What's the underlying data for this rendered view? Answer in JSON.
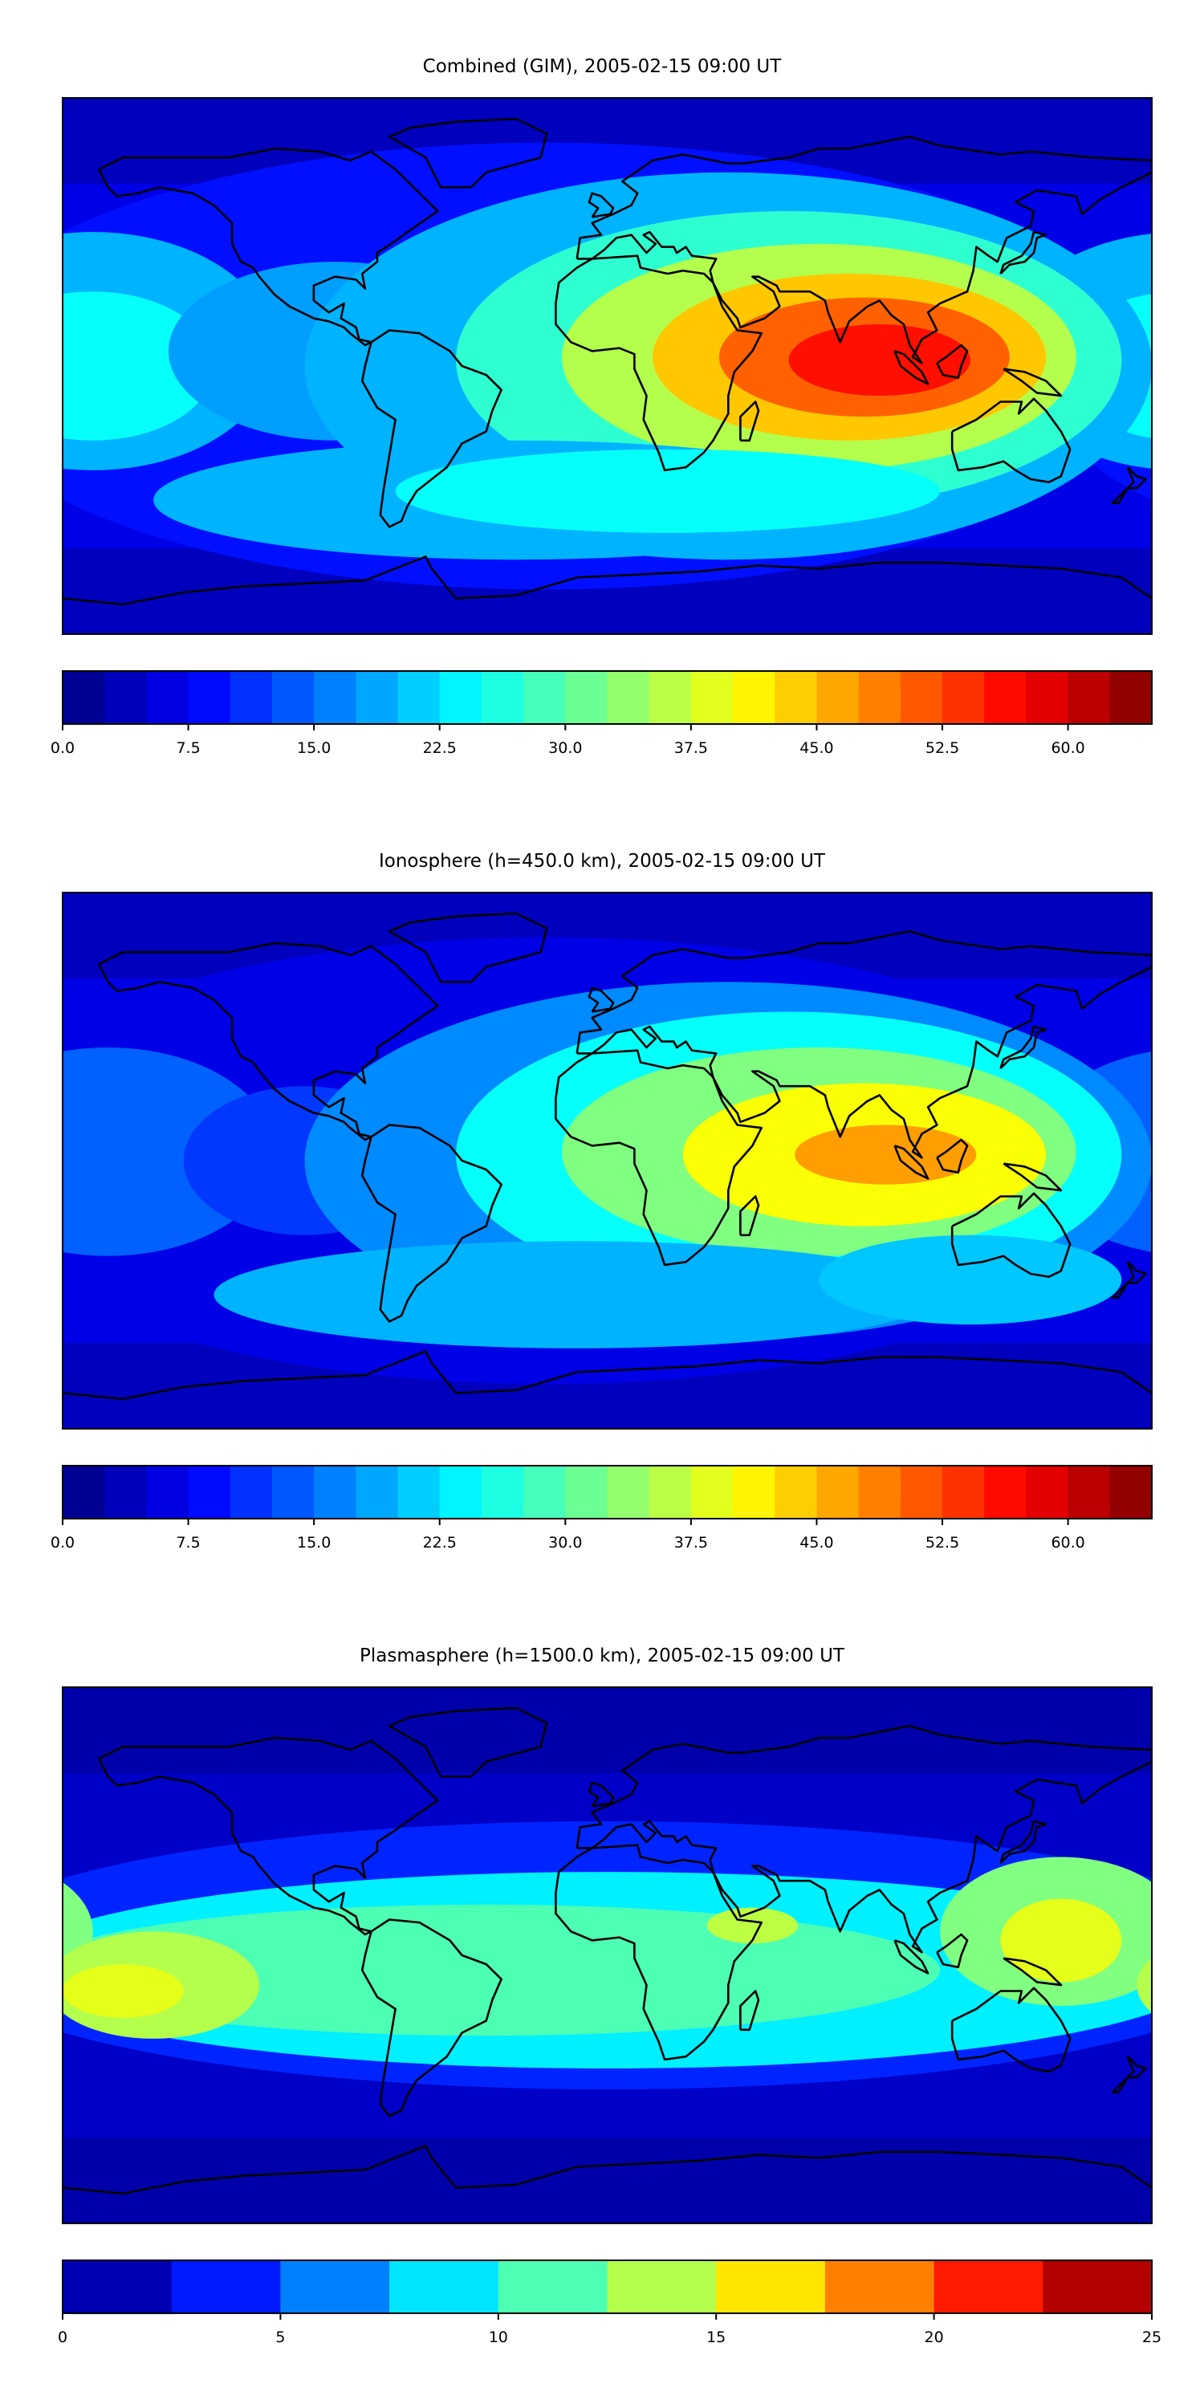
{
  "figure": {
    "description": "Global maps of total electron content"
  },
  "chart_data": [
    {
      "type": "heatmap",
      "title": "Combined (GIM), 2005-02-15 09:00 UT",
      "colorbar": {
        "min": 0.0,
        "max": 65.0,
        "levels": 26,
        "ticks": [
          0.0,
          7.5,
          15.0,
          22.5,
          30.0,
          37.5,
          45.0,
          52.5,
          60.0
        ],
        "tick_labels": [
          "0.0",
          "7.5",
          "15.0",
          "22.5",
          "30.0",
          "37.5",
          "45.0",
          "52.5",
          "60.0"
        ]
      },
      "features": [
        {
          "name": "equatorial-peak-indian-ocean",
          "lon": 88,
          "lat": 3,
          "value": 52
        },
        {
          "name": "africa-crest",
          "lon": 25,
          "lat": 5,
          "value": 44
        },
        {
          "name": "pacific-crest",
          "lon": -175,
          "lat": 0,
          "value": 25
        }
      ],
      "background_value": 9
    },
    {
      "type": "heatmap",
      "title": "Ionosphere  (h=450.0 km), 2005-02-15 09:00 UT",
      "colorbar": {
        "min": 0.0,
        "max": 65.0,
        "levels": 26,
        "ticks": [
          0.0,
          7.5,
          15.0,
          22.5,
          30.0,
          37.5,
          45.0,
          52.5,
          60.0
        ],
        "tick_labels": [
          "0.0",
          "7.5",
          "15.0",
          "22.5",
          "30.0",
          "37.5",
          "45.0",
          "52.5",
          "60.0"
        ]
      },
      "features": [
        {
          "name": "equatorial-peak-indian-ocean",
          "lon": 90,
          "lat": 2,
          "value": 45
        },
        {
          "name": "africa-crest",
          "lon": 30,
          "lat": 5,
          "value": 37
        },
        {
          "name": "pacific-crest",
          "lon": -175,
          "lat": 0,
          "value": 15
        }
      ],
      "background_value": 5
    },
    {
      "type": "heatmap",
      "title": "Plasmasphere (h=1500.0 km), 2005-02-15 09:00 UT",
      "colorbar": {
        "min": 0,
        "max": 25,
        "levels": 10,
        "ticks": [
          0,
          5,
          10,
          15,
          20,
          25
        ],
        "tick_labels": [
          "0",
          "5",
          "10",
          "15",
          "20",
          "25"
        ]
      },
      "features": [
        {
          "name": "pacific-crest",
          "lon": -170,
          "lat": -8,
          "value": 15
        },
        {
          "name": "west-pacific-crest",
          "lon": 150,
          "lat": 10,
          "value": 15
        },
        {
          "name": "east-africa-crest",
          "lon": 47,
          "lat": 10,
          "value": 13
        }
      ],
      "background_value": 3
    }
  ],
  "colors": {
    "coastline": "#000000",
    "frame": "#000000",
    "jet": [
      "#000080",
      "#0000ff",
      "#0080ff",
      "#00ffff",
      "#80ff80",
      "#ffff00",
      "#ff8000",
      "#ff0000",
      "#800000"
    ]
  }
}
